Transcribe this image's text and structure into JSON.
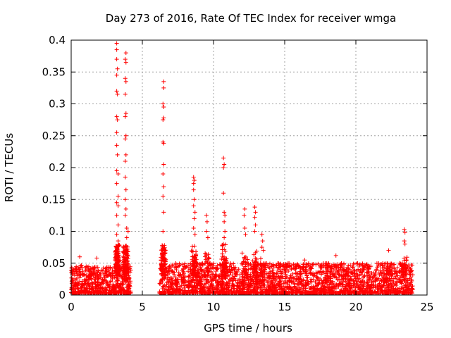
{
  "chart_data": {
    "type": "scatter",
    "title": "Day 273 of 2016, Rate Of TEC Index for receiver wmga",
    "xlabel": "GPS time / hours",
    "ylabel": "ROTI / TECUs",
    "xlim": [
      0,
      25
    ],
    "ylim": [
      0,
      0.4
    ],
    "xticks": [
      0,
      5,
      10,
      15,
      20,
      25
    ],
    "xtick_labels": [
      "0",
      "5",
      "10",
      "15",
      "20",
      "25"
    ],
    "yticks": [
      0,
      0.05,
      0.1,
      0.15,
      0.2,
      0.25,
      0.3,
      0.35,
      0.4
    ],
    "ytick_labels": [
      "0",
      "0.05",
      "0.1",
      "0.15",
      "0.2",
      "0.25",
      "0.3",
      "0.35",
      "0.4"
    ],
    "grid": true,
    "marker": "+",
    "color": "#ff0000",
    "data_gap_hours": [
      4.2,
      6.2
    ],
    "series": [
      {
        "name": "ROTI",
        "points": [
          [
            3.2,
            0.395
          ],
          [
            3.2,
            0.385
          ],
          [
            3.2,
            0.37
          ],
          [
            3.25,
            0.355
          ],
          [
            3.2,
            0.345
          ],
          [
            3.2,
            0.32
          ],
          [
            3.25,
            0.315
          ],
          [
            3.2,
            0.28
          ],
          [
            3.25,
            0.275
          ],
          [
            3.2,
            0.255
          ],
          [
            3.2,
            0.235
          ],
          [
            3.25,
            0.22
          ],
          [
            3.2,
            0.195
          ],
          [
            3.3,
            0.19
          ],
          [
            3.2,
            0.175
          ],
          [
            3.3,
            0.155
          ],
          [
            3.2,
            0.145
          ],
          [
            3.3,
            0.14
          ],
          [
            3.2,
            0.125
          ],
          [
            3.3,
            0.11
          ],
          [
            3.2,
            0.095
          ],
          [
            3.3,
            0.085
          ],
          [
            3.85,
            0.38
          ],
          [
            3.8,
            0.37
          ],
          [
            3.85,
            0.365
          ],
          [
            3.8,
            0.34
          ],
          [
            3.85,
            0.335
          ],
          [
            3.8,
            0.315
          ],
          [
            3.85,
            0.285
          ],
          [
            3.8,
            0.28
          ],
          [
            3.85,
            0.25
          ],
          [
            3.8,
            0.245
          ],
          [
            3.85,
            0.22
          ],
          [
            3.8,
            0.21
          ],
          [
            3.8,
            0.185
          ],
          [
            3.85,
            0.165
          ],
          [
            3.8,
            0.15
          ],
          [
            3.85,
            0.135
          ],
          [
            3.8,
            0.125
          ],
          [
            3.9,
            0.105
          ],
          [
            4.0,
            0.1
          ],
          [
            3.9,
            0.09
          ],
          [
            6.5,
            0.335
          ],
          [
            6.5,
            0.325
          ],
          [
            6.45,
            0.3
          ],
          [
            6.5,
            0.295
          ],
          [
            6.45,
            0.275
          ],
          [
            6.5,
            0.278
          ],
          [
            6.45,
            0.24
          ],
          [
            6.5,
            0.238
          ],
          [
            6.5,
            0.205
          ],
          [
            6.45,
            0.19
          ],
          [
            6.5,
            0.17
          ],
          [
            6.45,
            0.155
          ],
          [
            6.5,
            0.13
          ],
          [
            6.45,
            0.1
          ],
          [
            8.6,
            0.185
          ],
          [
            8.65,
            0.18
          ],
          [
            8.6,
            0.175
          ],
          [
            8.6,
            0.165
          ],
          [
            8.65,
            0.15
          ],
          [
            8.6,
            0.14
          ],
          [
            8.7,
            0.13
          ],
          [
            8.65,
            0.12
          ],
          [
            8.6,
            0.105
          ],
          [
            8.7,
            0.095
          ],
          [
            9.5,
            0.125
          ],
          [
            9.55,
            0.115
          ],
          [
            9.5,
            0.1
          ],
          [
            9.6,
            0.09
          ],
          [
            10.7,
            0.215
          ],
          [
            10.75,
            0.205
          ],
          [
            10.7,
            0.2
          ],
          [
            10.7,
            0.16
          ],
          [
            10.75,
            0.13
          ],
          [
            10.8,
            0.125
          ],
          [
            10.75,
            0.115
          ],
          [
            10.8,
            0.1
          ],
          [
            10.75,
            0.09
          ],
          [
            12.2,
            0.135
          ],
          [
            12.15,
            0.125
          ],
          [
            12.2,
            0.105
          ],
          [
            12.25,
            0.095
          ],
          [
            12.9,
            0.138
          ],
          [
            12.95,
            0.13
          ],
          [
            12.9,
            0.122
          ],
          [
            12.95,
            0.11
          ],
          [
            12.9,
            0.1
          ],
          [
            13.4,
            0.095
          ],
          [
            13.45,
            0.085
          ],
          [
            13.4,
            0.075
          ],
          [
            13.5,
            0.07
          ],
          [
            23.4,
            0.103
          ],
          [
            23.45,
            0.098
          ],
          [
            23.4,
            0.085
          ],
          [
            23.45,
            0.08
          ],
          [
            22.3,
            0.07
          ],
          [
            18.6,
            0.062
          ],
          [
            16.4,
            0.055
          ],
          [
            0.6,
            0.06
          ],
          [
            1.8,
            0.058
          ]
        ],
        "baseline_segments": [
          {
            "x_range": [
              0.0,
              4.2
            ],
            "y_typical": [
              0.0,
              0.045
            ]
          },
          {
            "x_range": [
              6.2,
              24.0
            ],
            "y_typical": [
              0.0,
              0.05
            ]
          }
        ]
      }
    ]
  }
}
